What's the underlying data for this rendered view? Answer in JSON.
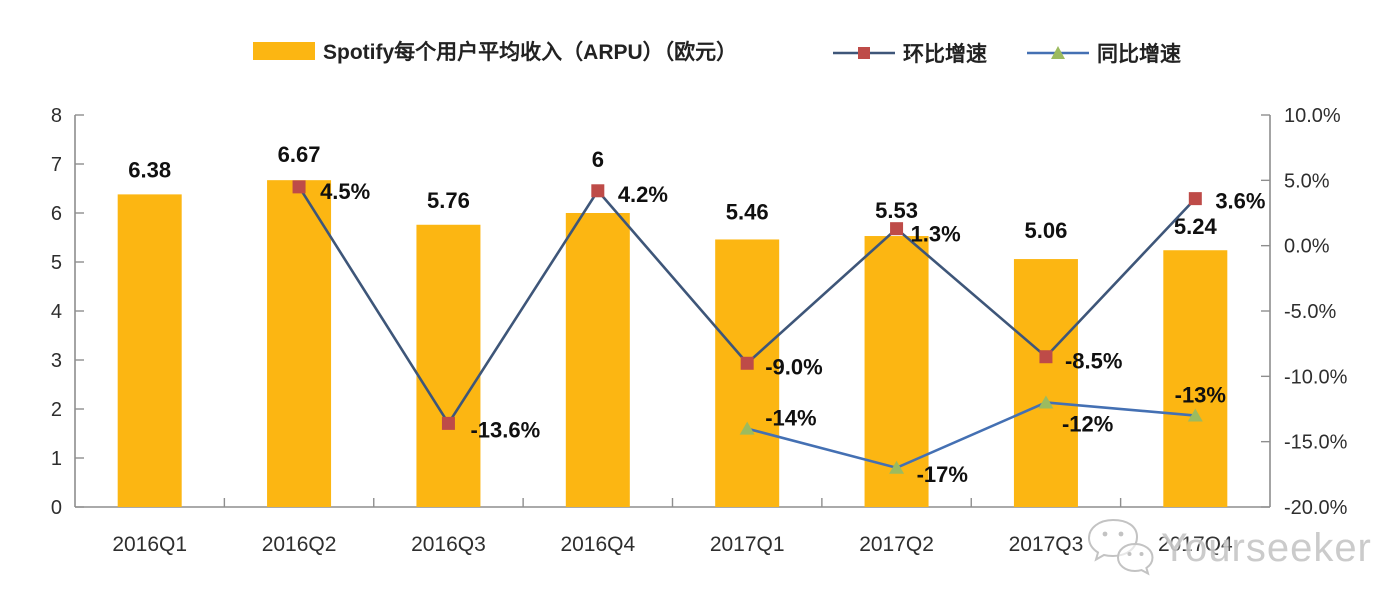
{
  "chart_data": {
    "type": "bar+line",
    "categories": [
      "2016Q1",
      "2016Q2",
      "2016Q3",
      "2016Q4",
      "2017Q1",
      "2017Q2",
      "2017Q3",
      "2017Q4"
    ],
    "series": [
      {
        "name": "Spotify每个用户平均收入（ARPU）（欧元）",
        "type": "bar",
        "axis": "left",
        "color": "#FCB612",
        "values": [
          6.38,
          6.67,
          5.76,
          6,
          5.46,
          5.53,
          5.06,
          5.24
        ],
        "labels": [
          "6.38",
          "6.67",
          "5.76",
          "6",
          "5.46",
          "5.53",
          "5.06",
          "5.24"
        ],
        "label_dy": [
          -24,
          -25,
          -24,
          -53,
          -27,
          -25,
          -28,
          -23
        ]
      },
      {
        "name": "环比增速",
        "type": "line",
        "axis": "right",
        "color": "#3E5679",
        "marker": "square",
        "marker_color": "#BE4B48",
        "values": [
          null,
          4.5,
          -13.6,
          4.2,
          -9.0,
          1.3,
          -8.5,
          3.6
        ],
        "labels": [
          null,
          "4.5%",
          "-13.6%",
          "4.2%",
          "-9.0%",
          "1.3%",
          "-8.5%",
          "3.6%"
        ],
        "label_offsets": [
          null,
          [
            21,
            5
          ],
          [
            22,
            7
          ],
          [
            20,
            4
          ],
          [
            18,
            4
          ],
          [
            14,
            6
          ],
          [
            19,
            5
          ],
          [
            20,
            3
          ]
        ]
      },
      {
        "name": "同比增速",
        "type": "line",
        "axis": "right",
        "color": "#4470B3",
        "marker": "triangle",
        "marker_color": "#9CBB5F",
        "values": [
          null,
          null,
          null,
          null,
          -14,
          -17,
          -12,
          -13
        ],
        "labels": [
          null,
          null,
          null,
          null,
          "-14%",
          "-17%",
          "-12%",
          "-13%"
        ],
        "label_offsets": [
          null,
          null,
          null,
          null,
          [
            18,
            -10
          ],
          [
            20,
            7
          ],
          [
            16,
            22
          ],
          [
            5,
            -20,
            "middle"
          ]
        ]
      }
    ],
    "left_axis": {
      "min": 0,
      "max": 8,
      "step": 1,
      "ticks": [
        "0",
        "1",
        "2",
        "3",
        "4",
        "5",
        "6",
        "7",
        "8"
      ]
    },
    "right_axis": {
      "min": -20,
      "max": 10,
      "step": 5,
      "ticks": [
        "10.0%",
        "5.0%",
        "0.0%",
        "-5.0%",
        "-10.0%",
        "-15.0%",
        "-20.0%"
      ]
    },
    "legend_position": "top",
    "grid": false,
    "axis_color": "#8E8E8E",
    "tick_label_color": "#2E2E2E",
    "data_label_color": "#101010"
  },
  "watermark": {
    "text": "Yourseeker",
    "icon": "wechat-bubbles-icon"
  }
}
